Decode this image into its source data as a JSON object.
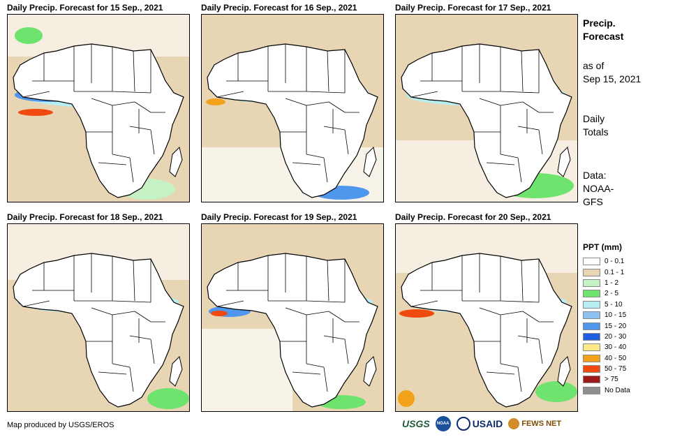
{
  "panels": [
    {
      "title": "Daily Precip. Forecast for 15 Sep., 2021"
    },
    {
      "title": "Daily Precip. Forecast for 16 Sep., 2021"
    },
    {
      "title": "Daily Precip. Forecast for 17 Sep., 2021"
    },
    {
      "title": "Daily Precip. Forecast for 18 Sep., 2021"
    },
    {
      "title": "Daily Precip. Forecast for 19 Sep., 2021"
    },
    {
      "title": "Daily Precip. Forecast for 20 Sep., 2021"
    }
  ],
  "sidebar": {
    "title_line1": "Precip.",
    "title_line2": "Forecast",
    "asof_line1": "as of",
    "asof_line2": "Sep 15, 2021",
    "daily_line1": "Daily",
    "daily_line2": "Totals",
    "data_line1": "Data:",
    "data_line2": "NOAA-",
    "data_line3": "GFS"
  },
  "legend": {
    "title": "PPT (mm)",
    "items": [
      {
        "label": "0 - 0.1",
        "color": "#ffffff"
      },
      {
        "label": "0.1 - 1",
        "color": "#e8d5b3"
      },
      {
        "label": "1 - 2",
        "color": "#c5f2c5"
      },
      {
        "label": "2 - 5",
        "color": "#6ee36e"
      },
      {
        "label": "5 - 10",
        "color": "#b7eef2"
      },
      {
        "label": "10 - 15",
        "color": "#8cc3f2"
      },
      {
        "label": "15 - 20",
        "color": "#4f97ec"
      },
      {
        "label": "20 - 30",
        "color": "#1f5fe0"
      },
      {
        "label": "30 - 40",
        "color": "#fce98a"
      },
      {
        "label": "40 - 50",
        "color": "#f2a11a"
      },
      {
        "label": "50 - 75",
        "color": "#f04a10"
      },
      {
        "label": "> 75",
        "color": "#9e1a1a"
      },
      {
        "label": "No Data",
        "color": "#8f8f8f"
      }
    ]
  },
  "credit": "Map produced by USGS/EROS",
  "logos": {
    "usgs": "USGS",
    "noaa": "NOAA",
    "usaid": "USAID",
    "fews": "FEWS NET"
  }
}
